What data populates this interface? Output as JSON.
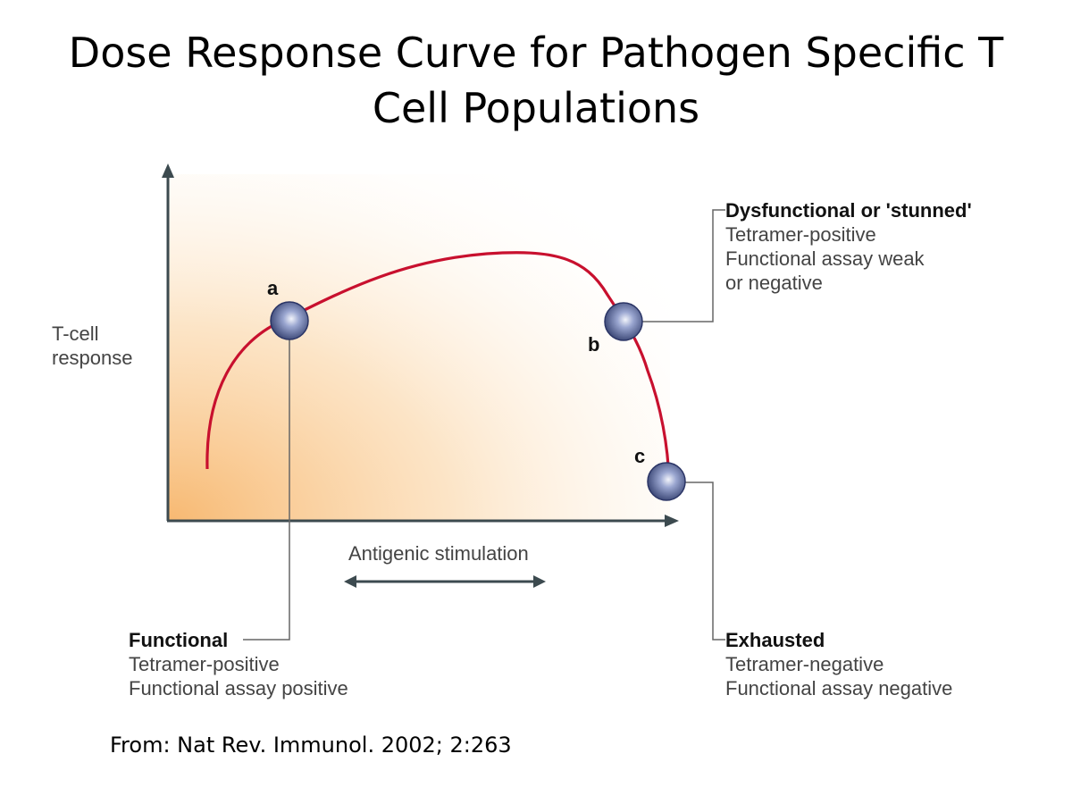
{
  "title": {
    "line1": "Dose Response Curve for Pathogen Specific T",
    "line2": "Cell Populations"
  },
  "axes": {
    "y_label_line1": "T-cell",
    "y_label_line2": "response",
    "x_label": "Antigenic stimulation"
  },
  "points": [
    {
      "letter": "a"
    },
    {
      "letter": "b"
    },
    {
      "letter": "c"
    }
  ],
  "callouts": {
    "functional": {
      "heading": "Functional",
      "line1": "Tetramer-positive",
      "line2": "Functional assay positive"
    },
    "dysfunctional": {
      "heading": "Dysfunctional or 'stunned'",
      "line1": "Tetramer-positive",
      "line2": "Functional assay weak",
      "line3": "or negative"
    },
    "exhausted": {
      "heading": "Exhausted",
      "line1": "Tetramer-negative",
      "line2": "Functional assay negative"
    }
  },
  "source": "From: Nat Rev. Immunol. 2002; 2:263",
  "colors": {
    "curve": "#c8102e",
    "gradient_warm": "#f7b56a",
    "axis": "#3c4a4f",
    "point": "#4a5a9a",
    "leader": "#666666"
  }
}
